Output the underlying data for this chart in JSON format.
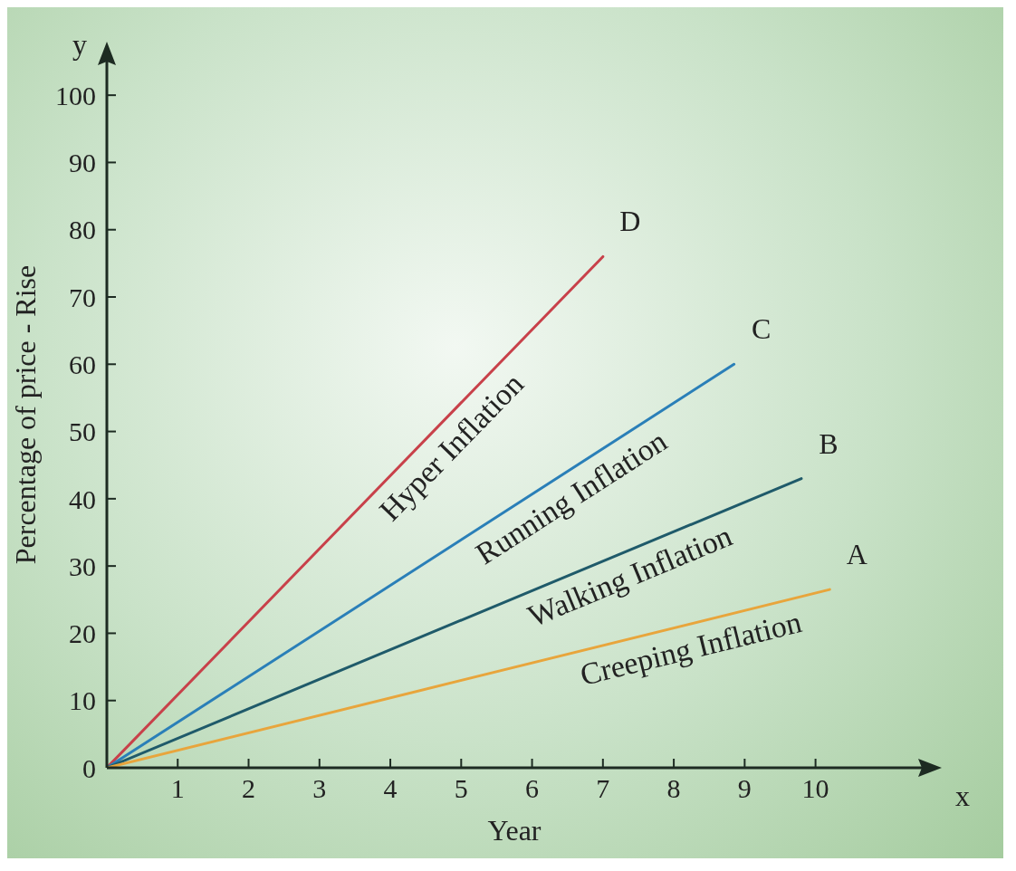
{
  "chart_data": {
    "type": "line",
    "xlabel": "Year",
    "ylabel": "Percentage of price - Rise",
    "series": [
      {
        "name": "D",
        "color": "#c8414a",
        "x": [
          0,
          7.0
        ],
        "values": [
          0,
          76
        ]
      },
      {
        "name": "C",
        "color": "#2a7fb8",
        "x": [
          0,
          8.85
        ],
        "values": [
          0,
          60
        ]
      },
      {
        "name": "B",
        "color": "#1f5a6a",
        "x": [
          0,
          9.8
        ],
        "values": [
          0,
          43
        ]
      },
      {
        "name": "A",
        "color": "#e8a53c",
        "x": [
          0,
          10.2
        ],
        "values": [
          0,
          26.5
        ]
      }
    ],
    "xlim": [
      0,
      11.5
    ],
    "xticks": [
      1,
      2,
      3,
      4,
      5,
      6,
      7,
      8,
      9,
      10
    ],
    "ylim": [
      0,
      105
    ],
    "yticks": [
      0,
      10,
      20,
      30,
      40,
      50,
      60,
      70,
      80,
      90,
      100
    ],
    "grid": false,
    "legend": false,
    "marker": "none",
    "line_style": "solid",
    "annotations": [
      "y",
      "x",
      "Hyper Inflation",
      "Running Inflation",
      "Walking Inflation",
      "Creeping Inflation"
    ]
  }
}
